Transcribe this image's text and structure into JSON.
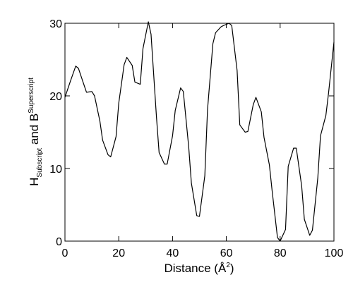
{
  "chart_data": {
    "type": "line",
    "title": "",
    "xlabel": {
      "text_before": "Distance (Å",
      "superscript": "2",
      "text_after": ")"
    },
    "ylabel": {
      "part1": "H",
      "part1_subscript": "Subscript",
      "part2": " and B",
      "part2_superscript": "Superscript"
    },
    "xlim": [
      0,
      100
    ],
    "ylim": [
      0,
      30
    ],
    "x_ticks": [
      0,
      20,
      40,
      60,
      80,
      100
    ],
    "y_ticks": [
      0,
      10,
      20,
      30
    ],
    "x_tick_labels": [
      "0",
      "20",
      "40",
      "60",
      "80",
      "100"
    ],
    "y_tick_labels": [
      "0",
      "10",
      "20",
      "30"
    ],
    "grid": false,
    "line_color": "#000000",
    "series": [
      {
        "x": [
          0,
          2,
          4,
          5,
          7,
          8,
          10,
          11,
          13,
          14,
          16,
          17,
          19,
          20,
          22,
          23,
          25,
          26,
          28,
          29,
          31,
          32,
          34,
          35,
          37,
          38,
          40,
          41,
          43,
          44,
          46,
          47,
          49,
          50,
          52,
          53,
          55,
          56,
          58,
          59,
          61,
          62,
          64,
          65,
          67,
          68,
          70,
          71,
          73,
          74,
          76,
          77,
          79,
          80,
          82,
          83,
          85,
          86,
          88,
          89,
          91,
          92,
          94,
          95,
          97,
          98,
          100
        ],
        "y": [
          19.8,
          22.0,
          24.1,
          23.8,
          21.6,
          20.5,
          20.6,
          20.0,
          16.5,
          13.9,
          11.9,
          11.6,
          14.4,
          19.0,
          24.3,
          25.3,
          24.2,
          21.9,
          21.6,
          26.5,
          30.2,
          28.5,
          17.2,
          12.2,
          10.6,
          10.6,
          14.5,
          18.0,
          21.1,
          20.6,
          13.0,
          8.0,
          3.5,
          3.4,
          9.0,
          18.1,
          27.2,
          28.7,
          29.5,
          29.7,
          30.0,
          29.7,
          23.5,
          16.0,
          15.0,
          15.1,
          18.8,
          19.8,
          17.8,
          14.3,
          10.5,
          7.0,
          0.5,
          0.0,
          1.6,
          10.3,
          12.8,
          12.8,
          7.6,
          3.0,
          0.8,
          1.5,
          8.7,
          14.5,
          17.3,
          20.4,
          27.4
        ]
      }
    ]
  }
}
